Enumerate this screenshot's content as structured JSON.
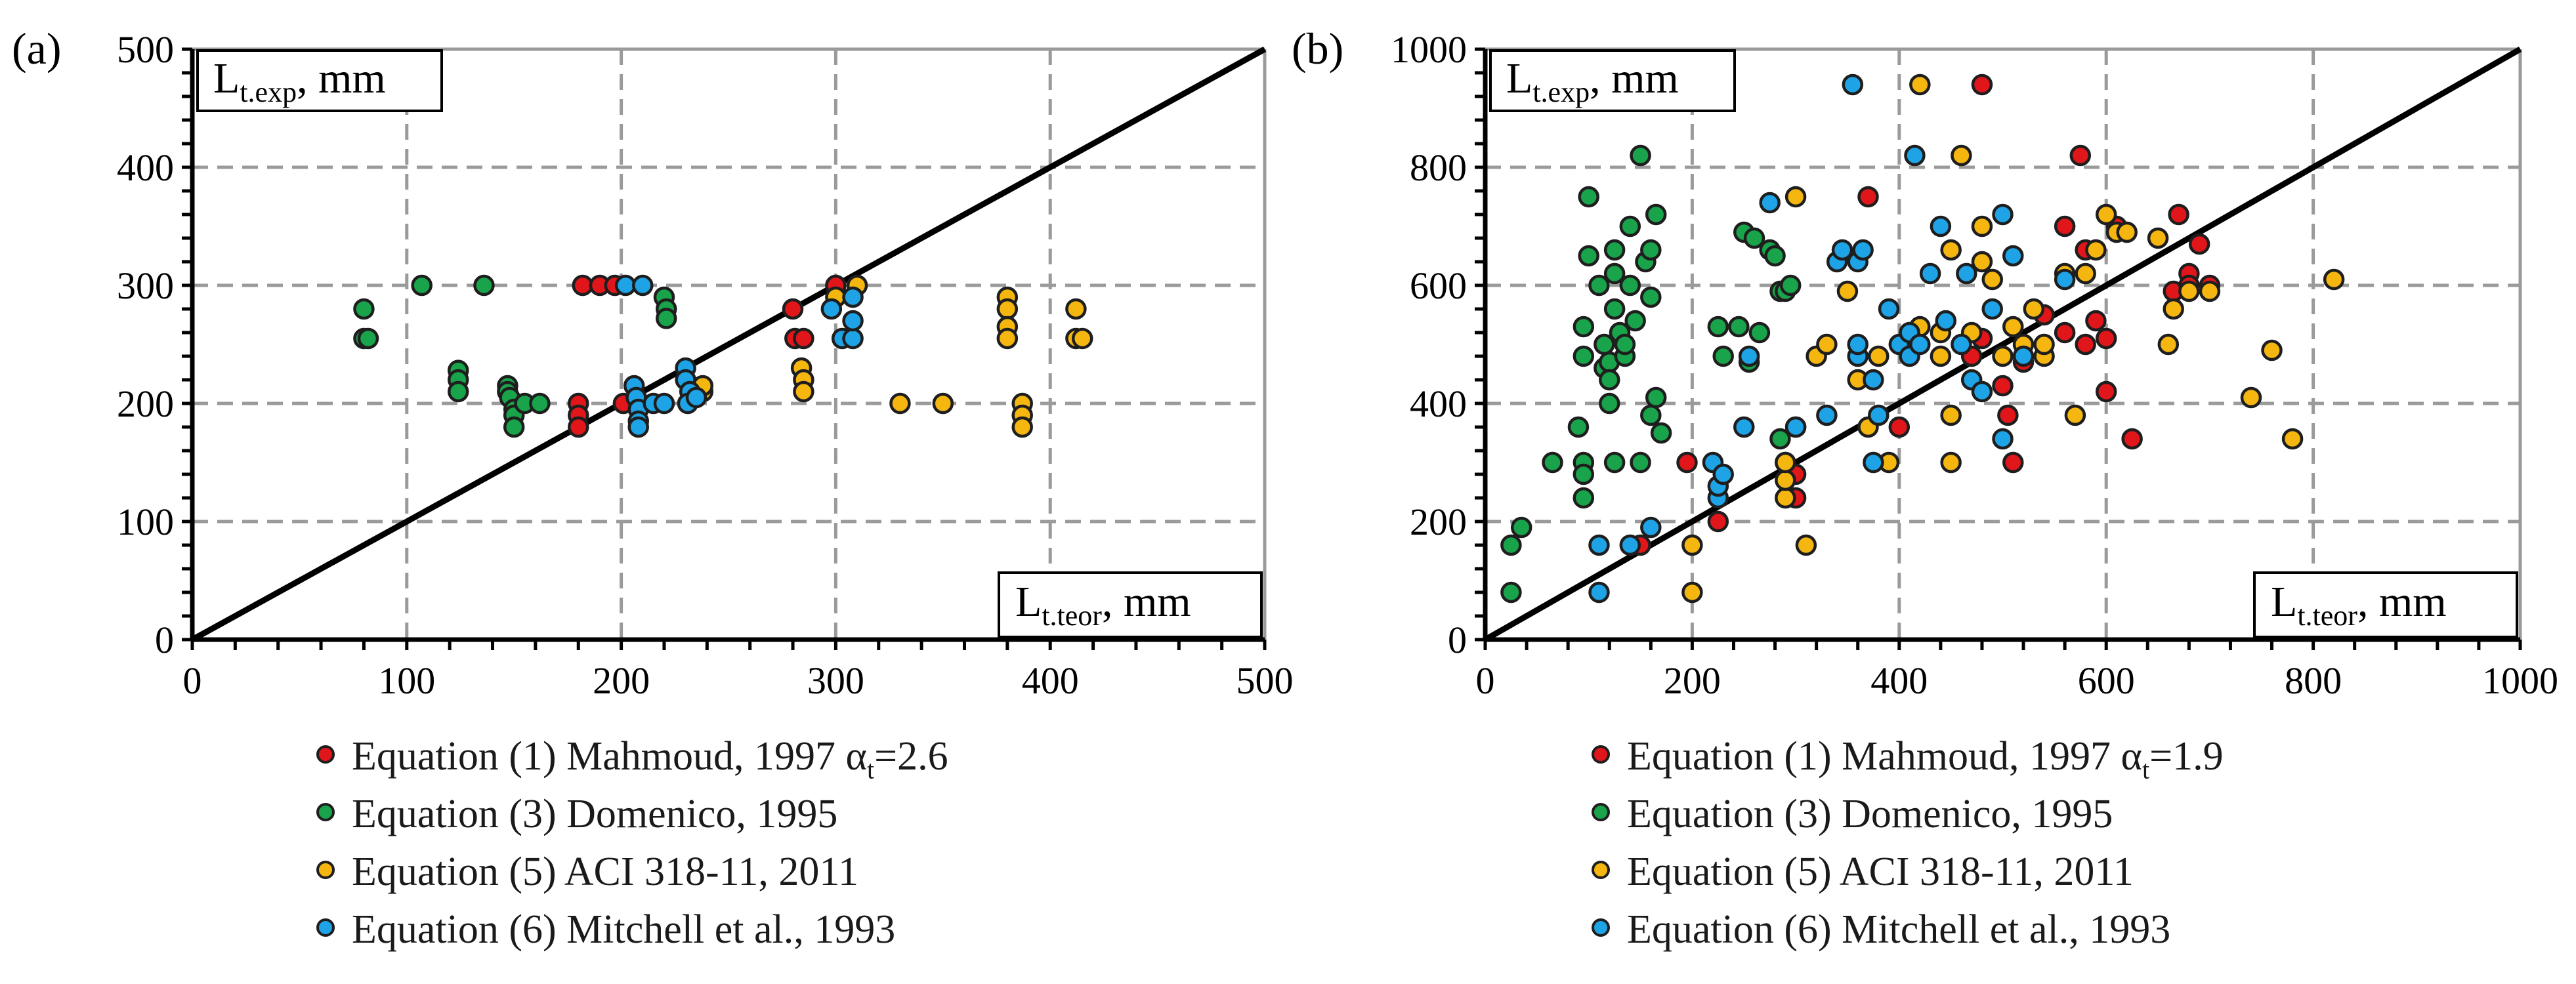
{
  "colors": {
    "mahmoud": "#e0161b",
    "domenico": "#19a34a",
    "aci": "#f5b60f",
    "mitchell": "#1ea3e6",
    "marker_edge": "#1e1e1e",
    "grid": "#9a9a9a",
    "axis": "#000000"
  },
  "chart_data": [
    {
      "type": "scatter",
      "panel_label": "(a)",
      "xlabel_main": "L",
      "xlabel_sub": "t.teor",
      "xlabel_unit": ", mm",
      "ylabel_main": "L",
      "ylabel_sub": "t.exp",
      "ylabel_unit": ", mm",
      "xlim": [
        0,
        500
      ],
      "ylim": [
        0,
        500
      ],
      "xticks": [
        0,
        100,
        200,
        300,
        400,
        500
      ],
      "yticks": [
        0,
        100,
        200,
        300,
        400,
        500
      ],
      "xtick_labels": [
        "0",
        "100",
        "200",
        "300",
        "400",
        "500"
      ],
      "ytick_labels": [
        "0",
        "100",
        "200",
        "300",
        "400",
        "500"
      ],
      "reference_line": "y = x",
      "legend": [
        {
          "prefix": "Equation (1) Mahmoud, 1997 α",
          "sub": "t",
          "suffix": "=2.6",
          "color_key": "mahmoud"
        },
        {
          "prefix": "Equation (3) Domenico, 1995",
          "sub": "",
          "suffix": "",
          "color_key": "domenico"
        },
        {
          "prefix": "Equation (5) ACI 318-11, 2011",
          "sub": "",
          "suffix": "",
          "color_key": "aci"
        },
        {
          "prefix": "Equation (6) Mitchell et al., 1993",
          "sub": "",
          "suffix": "",
          "color_key": "mitchell"
        }
      ],
      "series": [
        {
          "name": "Mahmoud",
          "color_key": "mahmoud",
          "points": [
            [
              180,
              200
            ],
            [
              180,
              190
            ],
            [
              180,
              180
            ],
            [
              182,
              300
            ],
            [
              190,
              300
            ],
            [
              197,
              300
            ],
            [
              201,
              200
            ],
            [
              280,
              280
            ],
            [
              281,
              255
            ],
            [
              285,
              255
            ],
            [
              300,
              300
            ]
          ]
        },
        {
          "name": "Domenico",
          "color_key": "domenico",
          "points": [
            [
              80,
              280
            ],
            [
              80,
              255
            ],
            [
              82,
              255
            ],
            [
              107,
              300
            ],
            [
              136,
              300
            ],
            [
              124,
              228
            ],
            [
              124,
              220
            ],
            [
              124,
              210
            ],
            [
              147,
              215
            ],
            [
              147,
              210
            ],
            [
              148,
              205
            ],
            [
              150,
              195
            ],
            [
              150,
              190
            ],
            [
              150,
              180
            ],
            [
              155,
              200
            ],
            [
              162,
              200
            ],
            [
              220,
              290
            ],
            [
              221,
              280
            ],
            [
              221,
              272
            ]
          ]
        },
        {
          "name": "ACI",
          "color_key": "aci",
          "points": [
            [
              238,
              210
            ],
            [
              238,
              215
            ],
            [
              284,
              230
            ],
            [
              285,
              220
            ],
            [
              285,
              210
            ],
            [
              300,
              290
            ],
            [
              310,
              300
            ],
            [
              330,
              200
            ],
            [
              350,
              200
            ],
            [
              380,
              290
            ],
            [
              380,
              280
            ],
            [
              380,
              265
            ],
            [
              380,
              255
            ],
            [
              387,
              200
            ],
            [
              387,
              190
            ],
            [
              387,
              180
            ],
            [
              412,
              280
            ],
            [
              412,
              255
            ],
            [
              415,
              255
            ]
          ]
        },
        {
          "name": "Mitchell",
          "color_key": "mitchell",
          "points": [
            [
              202,
              300
            ],
            [
              210,
              300
            ],
            [
              206,
              215
            ],
            [
              207,
              205
            ],
            [
              208,
              195
            ],
            [
              208,
              185
            ],
            [
              208,
              180
            ],
            [
              215,
              200
            ],
            [
              220,
              200
            ],
            [
              230,
              230
            ],
            [
              230,
              220
            ],
            [
              232,
              210
            ],
            [
              231,
              200
            ],
            [
              235,
              205
            ],
            [
              298,
              280
            ],
            [
              303,
              255
            ],
            [
              308,
              255
            ],
            [
              308,
              270
            ],
            [
              308,
              290
            ]
          ]
        }
      ]
    },
    {
      "type": "scatter",
      "panel_label": "(b)",
      "xlabel_main": "L",
      "xlabel_sub": "t.teor",
      "xlabel_unit": ", mm",
      "ylabel_main": "L",
      "ylabel_sub": "t.exp",
      "ylabel_unit": ", mm",
      "xlim": [
        0,
        1000
      ],
      "ylim": [
        0,
        1000
      ],
      "xticks": [
        0,
        200,
        400,
        600,
        800,
        1000
      ],
      "yticks": [
        0,
        200,
        400,
        600,
        800,
        1000
      ],
      "xtick_labels": [
        "0",
        "200",
        "400",
        "600",
        "800",
        "1000"
      ],
      "ytick_labels": [
        "0",
        "200",
        "400",
        "600",
        "800",
        "1000"
      ],
      "reference_line": "y = x",
      "legend": [
        {
          "prefix": "Equation (1) Mahmoud, 1997 α",
          "sub": "t",
          "suffix": "=1.9",
          "color_key": "mahmoud"
        },
        {
          "prefix": "Equation (3) Domenico, 1995",
          "sub": "",
          "suffix": "",
          "color_key": "domenico"
        },
        {
          "prefix": "Equation (5) ACI 318-11, 2011",
          "sub": "",
          "suffix": "",
          "color_key": "aci"
        },
        {
          "prefix": "Equation (6) Mitchell et al., 1993",
          "sub": "",
          "suffix": "",
          "color_key": "mitchell"
        }
      ],
      "series": [
        {
          "name": "Mahmoud",
          "color_key": "mahmoud",
          "points": [
            [
              150,
              160
            ],
            [
              195,
              300
            ],
            [
              225,
              200
            ],
            [
              300,
              240
            ],
            [
              300,
              280
            ],
            [
              370,
              750
            ],
            [
              400,
              360
            ],
            [
              480,
              940
            ],
            [
              470,
              480
            ],
            [
              480,
              510
            ],
            [
              500,
              430
            ],
            [
              505,
              380
            ],
            [
              510,
              300
            ],
            [
              520,
              470
            ],
            [
              540,
              550
            ],
            [
              560,
              700
            ],
            [
              575,
              820
            ],
            [
              580,
              660
            ],
            [
              590,
              540
            ],
            [
              600,
              510
            ],
            [
              600,
              420
            ],
            [
              610,
              700
            ],
            [
              625,
              340
            ],
            [
              665,
              590
            ],
            [
              670,
              720
            ],
            [
              680,
              620
            ],
            [
              680,
              600
            ],
            [
              690,
              670
            ],
            [
              700,
              600
            ],
            [
              580,
              500
            ],
            [
              560,
              520
            ]
          ]
        },
        {
          "name": "Domenico",
          "color_key": "domenico",
          "points": [
            [
              25,
              80
            ],
            [
              25,
              160
            ],
            [
              35,
              190
            ],
            [
              65,
              300
            ],
            [
              90,
              360
            ],
            [
              95,
              300
            ],
            [
              95,
              280
            ],
            [
              95,
              240
            ],
            [
              95,
              480
            ],
            [
              95,
              530
            ],
            [
              100,
              750
            ],
            [
              100,
              650
            ],
            [
              110,
              600
            ],
            [
              115,
              500
            ],
            [
              115,
              460
            ],
            [
              120,
              470
            ],
            [
              120,
              440
            ],
            [
              120,
              400
            ],
            [
              125,
              660
            ],
            [
              125,
              620
            ],
            [
              125,
              560
            ],
            [
              130,
              520
            ],
            [
              135,
              480
            ],
            [
              135,
              500
            ],
            [
              140,
              600
            ],
            [
              140,
              700
            ],
            [
              145,
              540
            ],
            [
              150,
              820
            ],
            [
              155,
              640
            ],
            [
              160,
              580
            ],
            [
              160,
              660
            ],
            [
              160,
              380
            ],
            [
              165,
              410
            ],
            [
              165,
              720
            ],
            [
              170,
              350
            ],
            [
              225,
              530
            ],
            [
              230,
              480
            ],
            [
              245,
              530
            ],
            [
              250,
              690
            ],
            [
              255,
              470
            ],
            [
              260,
              680
            ],
            [
              265,
              520
            ],
            [
              275,
              660
            ],
            [
              280,
              650
            ],
            [
              285,
              590
            ],
            [
              290,
              590
            ],
            [
              295,
              600
            ],
            [
              290,
              300
            ],
            [
              300,
              360
            ],
            [
              285,
              340
            ],
            [
              125,
              300
            ],
            [
              150,
              300
            ]
          ]
        },
        {
          "name": "ACI",
          "color_key": "aci",
          "points": [
            [
              200,
              80
            ],
            [
              200,
              160
            ],
            [
              290,
              240
            ],
            [
              290,
              270
            ],
            [
              290,
              300
            ],
            [
              300,
              750
            ],
            [
              310,
              160
            ],
            [
              320,
              480
            ],
            [
              330,
              500
            ],
            [
              350,
              590
            ],
            [
              360,
              440
            ],
            [
              370,
              360
            ],
            [
              380,
              480
            ],
            [
              390,
              300
            ],
            [
              420,
              940
            ],
            [
              420,
              530
            ],
            [
              440,
              480
            ],
            [
              440,
              520
            ],
            [
              450,
              300
            ],
            [
              450,
              380
            ],
            [
              450,
              660
            ],
            [
              460,
              820
            ],
            [
              470,
              520
            ],
            [
              480,
              640
            ],
            [
              480,
              700
            ],
            [
              490,
              610
            ],
            [
              500,
              480
            ],
            [
              510,
              530
            ],
            [
              520,
              500
            ],
            [
              530,
              560
            ],
            [
              540,
              480
            ],
            [
              540,
              500
            ],
            [
              560,
              620
            ],
            [
              570,
              380
            ],
            [
              580,
              620
            ],
            [
              590,
              660
            ],
            [
              600,
              720
            ],
            [
              610,
              690
            ],
            [
              620,
              690
            ],
            [
              650,
              680
            ],
            [
              660,
              500
            ],
            [
              665,
              560
            ],
            [
              680,
              590
            ],
            [
              700,
              590
            ],
            [
              740,
              410
            ],
            [
              760,
              490
            ],
            [
              780,
              340
            ],
            [
              820,
              610
            ]
          ]
        },
        {
          "name": "Mitchell",
          "color_key": "mitchell",
          "points": [
            [
              110,
              80
            ],
            [
              110,
              160
            ],
            [
              140,
              160
            ],
            [
              160,
              190
            ],
            [
              220,
              300
            ],
            [
              225,
              240
            ],
            [
              225,
              260
            ],
            [
              230,
              280
            ],
            [
              250,
              360
            ],
            [
              255,
              480
            ],
            [
              275,
              740
            ],
            [
              300,
              360
            ],
            [
              330,
              380
            ],
            [
              340,
              640
            ],
            [
              345,
              660
            ],
            [
              355,
              940
            ],
            [
              360,
              480
            ],
            [
              360,
              500
            ],
            [
              360,
              640
            ],
            [
              365,
              660
            ],
            [
              375,
              300
            ],
            [
              375,
              440
            ],
            [
              380,
              380
            ],
            [
              390,
              560
            ],
            [
              400,
              500
            ],
            [
              410,
              480
            ],
            [
              410,
              520
            ],
            [
              415,
              820
            ],
            [
              420,
              500
            ],
            [
              430,
              620
            ],
            [
              440,
              700
            ],
            [
              445,
              540
            ],
            [
              460,
              500
            ],
            [
              465,
              620
            ],
            [
              470,
              440
            ],
            [
              480,
              420
            ],
            [
              490,
              560
            ],
            [
              500,
              720
            ],
            [
              500,
              340
            ],
            [
              510,
              650
            ],
            [
              520,
              480
            ],
            [
              560,
              610
            ]
          ]
        }
      ]
    }
  ]
}
